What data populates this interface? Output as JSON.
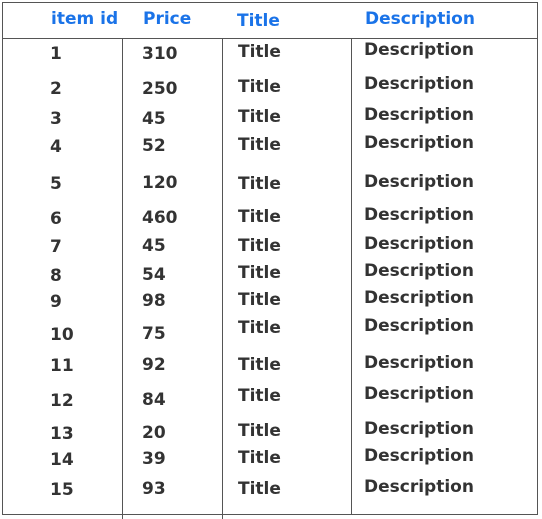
{
  "table": {
    "headers": {
      "item_id": "item id",
      "price": "Price",
      "title": "Title",
      "description": "Description"
    },
    "rows": [
      {
        "item_id": "1",
        "price": "310",
        "title": "Title",
        "description": "Description"
      },
      {
        "item_id": "2",
        "price": "250",
        "title": "Title",
        "description": "Description"
      },
      {
        "item_id": "3",
        "price": "45",
        "title": "Title",
        "description": "Description"
      },
      {
        "item_id": "4",
        "price": "52",
        "title": "Title",
        "description": "Description"
      },
      {
        "item_id": "5",
        "price": "120",
        "title": "Title",
        "description": "Description"
      },
      {
        "item_id": "6",
        "price": "460",
        "title": "Title",
        "description": "Description"
      },
      {
        "item_id": "7",
        "price": "45",
        "title": "Title",
        "description": "Description"
      },
      {
        "item_id": "8",
        "price": "54",
        "title": "Title",
        "description": "Description"
      },
      {
        "item_id": "9",
        "price": "98",
        "title": "Title",
        "description": "Description"
      },
      {
        "item_id": "10",
        "price": "75",
        "title": "Title",
        "description": "Description"
      },
      {
        "item_id": "11",
        "price": "92",
        "title": "Title",
        "description": "Description"
      },
      {
        "item_id": "12",
        "price": "84",
        "title": "Title",
        "description": "Description"
      },
      {
        "item_id": "13",
        "price": "20",
        "title": "Title",
        "description": "Description"
      },
      {
        "item_id": "14",
        "price": "39",
        "title": "Title",
        "description": "Description"
      },
      {
        "item_id": "15",
        "price": "93",
        "title": "Title",
        "description": "Description"
      }
    ]
  },
  "colors": {
    "header_text": "#1a73e8",
    "body_text": "#333333",
    "rule": "#555555"
  }
}
